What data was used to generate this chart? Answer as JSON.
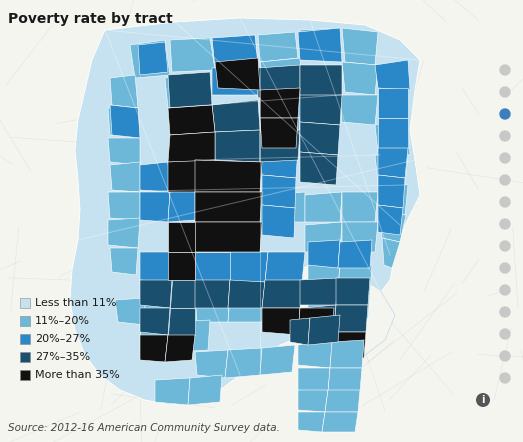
{
  "title": "Poverty rate by tract",
  "source_text": "Source: 2012-16 American Community Survey data.",
  "background_color": "#f5f5f0",
  "map_bg_color": "#e8e8e8",
  "legend_items": [
    {
      "label": "Less than 11%",
      "color": "#c6e2f0"
    },
    {
      "label": "11%–20%",
      "color": "#6db8d8"
    },
    {
      "label": "20%–27%",
      "color": "#2b88c8"
    },
    {
      "label": "27%–35%",
      "color": "#1a4f6e"
    },
    {
      "label": "More than 35%",
      "color": "#111111"
    }
  ],
  "road_color": "#ffffff",
  "road_alpha": 0.5,
  "dot_colors": [
    "#c8c8c8",
    "#c8c8c8",
    "#3a80c0",
    "#c8c8c8",
    "#c8c8c8",
    "#c8c8c8",
    "#c8c8c8",
    "#c8c8c8",
    "#c8c8c8",
    "#c8c8c8",
    "#c8c8c8",
    "#c8c8c8",
    "#c8c8c8",
    "#c8c8c8",
    "#c8c8c8"
  ],
  "info_icon_color": "#4a4a4a",
  "title_fontsize": 10,
  "legend_fontsize": 8,
  "source_fontsize": 7.5,
  "figsize": [
    5.23,
    4.42
  ],
  "dpi": 100
}
